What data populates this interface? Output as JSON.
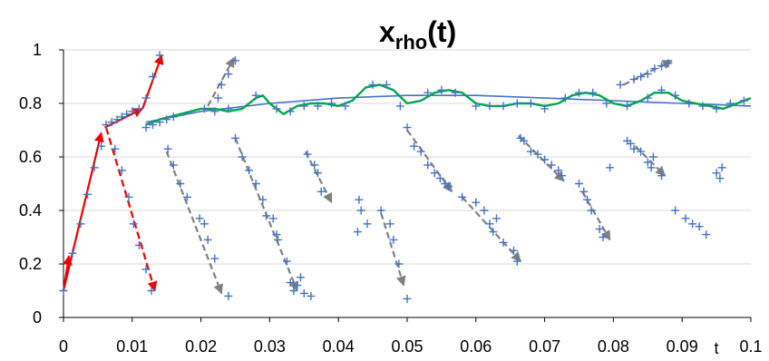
{
  "chart_data": {
    "type": "scatter",
    "title_main": "x",
    "title_sub": "rho",
    "title_tail": "(t)",
    "xlabel": "t",
    "xlim": [
      0,
      0.1
    ],
    "ylim": [
      0,
      1
    ],
    "x_ticks": [
      "0",
      "0.01",
      "0.02",
      "0.03",
      "0.04",
      "0.05",
      "0.06",
      "0.07",
      "0.08",
      "0.09",
      "0.1"
    ],
    "y_ticks": [
      "0",
      "0.2",
      "0.4",
      "0.6",
      "0.8",
      "1"
    ],
    "grid": "horizontal",
    "colors": {
      "points": "#4472c4",
      "smooth_fit": "#4472c4",
      "oscillating_fit": "#00a651",
      "red_arrows": "#ee0000",
      "gray_arrows": "#808080"
    },
    "series": [
      {
        "marker": "plus",
        "points": [
          [
            0,
            0.1
          ],
          [
            0.0013,
            0.24
          ],
          [
            0.0025,
            0.35
          ],
          [
            0.0035,
            0.46
          ],
          [
            0.0045,
            0.56
          ],
          [
            0.0055,
            0.64
          ],
          [
            0.0062,
            0.72
          ],
          [
            0.007,
            0.73
          ],
          [
            0.0078,
            0.74
          ],
          [
            0.0085,
            0.75
          ],
          [
            0.0092,
            0.76
          ],
          [
            0.01,
            0.77
          ],
          [
            0.011,
            0.78
          ],
          [
            0.012,
            0.82
          ],
          [
            0.013,
            0.9
          ],
          [
            0.014,
            0.98
          ],
          [
            0.0075,
            0.63
          ],
          [
            0.0085,
            0.55
          ],
          [
            0.0095,
            0.45
          ],
          [
            0.0102,
            0.35
          ],
          [
            0.011,
            0.27
          ],
          [
            0.012,
            0.18
          ],
          [
            0.0128,
            0.1
          ],
          [
            0.012,
            0.71
          ],
          [
            0.013,
            0.72
          ],
          [
            0.014,
            0.73
          ],
          [
            0.015,
            0.74
          ],
          [
            0.016,
            0.75
          ],
          [
            0.0152,
            0.63
          ],
          [
            0.016,
            0.57
          ],
          [
            0.017,
            0.5
          ],
          [
            0.018,
            0.45
          ],
          [
            0.0198,
            0.37
          ],
          [
            0.0205,
            0.35
          ],
          [
            0.021,
            0.29
          ],
          [
            0.022,
            0.22
          ],
          [
            0.024,
            0.08
          ],
          [
            0.0205,
            0.78
          ],
          [
            0.0225,
            0.82
          ],
          [
            0.023,
            0.87
          ],
          [
            0.024,
            0.91
          ],
          [
            0.025,
            0.96
          ],
          [
            0.025,
            0.67
          ],
          [
            0.026,
            0.6
          ],
          [
            0.027,
            0.55
          ],
          [
            0.028,
            0.5
          ],
          [
            0.029,
            0.44
          ],
          [
            0.0295,
            0.38
          ],
          [
            0.0305,
            0.37
          ],
          [
            0.031,
            0.31
          ],
          [
            0.0312,
            0.29
          ],
          [
            0.0325,
            0.21
          ],
          [
            0.033,
            0.13
          ],
          [
            0.034,
            0.12
          ],
          [
            0.0345,
            0.15
          ],
          [
            0.035,
            0.09
          ],
          [
            0.036,
            0.08
          ],
          [
            0.0335,
            0.1
          ],
          [
            0.0355,
            0.61
          ],
          [
            0.0365,
            0.57
          ],
          [
            0.037,
            0.54
          ],
          [
            0.0375,
            0.47
          ],
          [
            0.043,
            0.44
          ],
          [
            0.0433,
            0.4
          ],
          [
            0.0428,
            0.32
          ],
          [
            0.0442,
            0.35
          ],
          [
            0.0462,
            0.4
          ],
          [
            0.0475,
            0.35
          ],
          [
            0.048,
            0.29
          ],
          [
            0.0488,
            0.2
          ],
          [
            0.05,
            0.07
          ],
          [
            0.05,
            0.71
          ],
          [
            0.051,
            0.64
          ],
          [
            0.052,
            0.62
          ],
          [
            0.053,
            0.57
          ],
          [
            0.054,
            0.54
          ],
          [
            0.0548,
            0.52
          ],
          [
            0.0555,
            0.5
          ],
          [
            0.056,
            0.49
          ],
          [
            0.058,
            0.45
          ],
          [
            0.06,
            0.43
          ],
          [
            0.0612,
            0.4
          ],
          [
            0.062,
            0.35
          ],
          [
            0.063,
            0.37
          ],
          [
            0.0625,
            0.32
          ],
          [
            0.064,
            0.28
          ],
          [
            0.0655,
            0.25
          ],
          [
            0.066,
            0.21
          ],
          [
            0.0665,
            0.67
          ],
          [
            0.067,
            0.66
          ],
          [
            0.068,
            0.62
          ],
          [
            0.069,
            0.61
          ],
          [
            0.07,
            0.59
          ],
          [
            0.071,
            0.57
          ],
          [
            0.072,
            0.55
          ],
          [
            0.0725,
            0.53
          ],
          [
            0.075,
            0.5
          ],
          [
            0.0757,
            0.47
          ],
          [
            0.0762,
            0.44
          ],
          [
            0.0768,
            0.4
          ],
          [
            0.078,
            0.33
          ],
          [
            0.0785,
            0.3
          ],
          [
            0.0795,
            0.56
          ],
          [
            0.082,
            0.66
          ],
          [
            0.0825,
            0.65
          ],
          [
            0.083,
            0.63
          ],
          [
            0.084,
            0.62
          ],
          [
            0.085,
            0.58
          ],
          [
            0.0855,
            0.56
          ],
          [
            0.0858,
            0.6
          ],
          [
            0.087,
            0.53
          ],
          [
            0.081,
            0.87
          ],
          [
            0.083,
            0.89
          ],
          [
            0.084,
            0.9
          ],
          [
            0.085,
            0.91
          ],
          [
            0.086,
            0.93
          ],
          [
            0.087,
            0.94
          ],
          [
            0.088,
            0.95
          ],
          [
            0.089,
            0.4
          ],
          [
            0.0905,
            0.37
          ],
          [
            0.0915,
            0.35
          ],
          [
            0.0925,
            0.34
          ],
          [
            0.0935,
            0.31
          ],
          [
            0.095,
            0.54
          ],
          [
            0.0955,
            0.52
          ],
          [
            0.0958,
            0.56
          ],
          [
            0.022,
            0.77
          ],
          [
            0.024,
            0.78
          ],
          [
            0.028,
            0.83
          ],
          [
            0.031,
            0.78
          ],
          [
            0.033,
            0.77
          ],
          [
            0.035,
            0.79
          ],
          [
            0.037,
            0.79
          ],
          [
            0.039,
            0.8
          ],
          [
            0.041,
            0.79
          ],
          [
            0.045,
            0.87
          ],
          [
            0.047,
            0.87
          ],
          [
            0.049,
            0.79
          ],
          [
            0.053,
            0.84
          ],
          [
            0.055,
            0.85
          ],
          [
            0.057,
            0.84
          ],
          [
            0.06,
            0.79
          ],
          [
            0.062,
            0.79
          ],
          [
            0.064,
            0.79
          ],
          [
            0.066,
            0.8
          ],
          [
            0.068,
            0.8
          ],
          [
            0.07,
            0.78
          ],
          [
            0.073,
            0.82
          ],
          [
            0.075,
            0.84
          ],
          [
            0.077,
            0.84
          ],
          [
            0.079,
            0.8
          ],
          [
            0.082,
            0.79
          ],
          [
            0.085,
            0.82
          ],
          [
            0.087,
            0.85
          ],
          [
            0.089,
            0.83
          ],
          [
            0.091,
            0.8
          ],
          [
            0.093,
            0.79
          ],
          [
            0.095,
            0.78
          ],
          [
            0.097,
            0.8
          ],
          [
            0.099,
            0.81
          ]
        ]
      },
      {
        "style": "smooth line",
        "points": [
          [
            0.012,
            0.73
          ],
          [
            0.02,
            0.77
          ],
          [
            0.03,
            0.8
          ],
          [
            0.04,
            0.82
          ],
          [
            0.05,
            0.83
          ],
          [
            0.06,
            0.83
          ],
          [
            0.07,
            0.82
          ],
          [
            0.08,
            0.81
          ],
          [
            0.09,
            0.8
          ],
          [
            0.1,
            0.79
          ]
        ]
      },
      {
        "style": "oscillating line",
        "points": [
          [
            0.012,
            0.72
          ],
          [
            0.014,
            0.74
          ],
          [
            0.017,
            0.76
          ],
          [
            0.02,
            0.78
          ],
          [
            0.022,
            0.78
          ],
          [
            0.024,
            0.77
          ],
          [
            0.026,
            0.78
          ],
          [
            0.028,
            0.82
          ],
          [
            0.029,
            0.83
          ],
          [
            0.03,
            0.8
          ],
          [
            0.031,
            0.78
          ],
          [
            0.032,
            0.76
          ],
          [
            0.034,
            0.79
          ],
          [
            0.036,
            0.8
          ],
          [
            0.038,
            0.8
          ],
          [
            0.04,
            0.79
          ],
          [
            0.042,
            0.81
          ],
          [
            0.044,
            0.86
          ],
          [
            0.046,
            0.87
          ],
          [
            0.048,
            0.85
          ],
          [
            0.05,
            0.8
          ],
          [
            0.052,
            0.81
          ],
          [
            0.054,
            0.84
          ],
          [
            0.056,
            0.85
          ],
          [
            0.058,
            0.84
          ],
          [
            0.06,
            0.8
          ],
          [
            0.062,
            0.79
          ],
          [
            0.064,
            0.79
          ],
          [
            0.066,
            0.8
          ],
          [
            0.068,
            0.8
          ],
          [
            0.07,
            0.79
          ],
          [
            0.072,
            0.8
          ],
          [
            0.074,
            0.83
          ],
          [
            0.076,
            0.84
          ],
          [
            0.078,
            0.83
          ],
          [
            0.08,
            0.8
          ],
          [
            0.082,
            0.79
          ],
          [
            0.084,
            0.81
          ],
          [
            0.086,
            0.84
          ],
          [
            0.088,
            0.84
          ],
          [
            0.09,
            0.81
          ],
          [
            0.092,
            0.8
          ],
          [
            0.094,
            0.79
          ],
          [
            0.096,
            0.78
          ],
          [
            0.098,
            0.8
          ],
          [
            0.1,
            0.82
          ]
        ]
      }
    ],
    "red_arrows": [
      {
        "style": "solid",
        "from": [
          0,
          0.1
        ],
        "to": [
          0.0008,
          0.23
        ]
      },
      {
        "style": "solid",
        "from": [
          0,
          0.1
        ],
        "to": [
          0.0055,
          0.69
        ]
      },
      {
        "style": "solid",
        "from": [
          0.006,
          0.71
        ],
        "to": [
          0.0115,
          0.78
        ]
      },
      {
        "style": "solid",
        "from": [
          0.0115,
          0.78
        ],
        "to": [
          0.0143,
          0.98
        ]
      },
      {
        "style": "dashed",
        "from": [
          0.0062,
          0.71
        ],
        "to": [
          0.0133,
          0.1
        ]
      }
    ],
    "gray_arrows": [
      {
        "from": [
          0.015,
          0.62
        ],
        "to": [
          0.023,
          0.09
        ]
      },
      {
        "from": [
          0.021,
          0.79
        ],
        "to": [
          0.0248,
          0.97
        ]
      },
      {
        "from": [
          0.025,
          0.67
        ],
        "to": [
          0.034,
          0.1
        ]
      },
      {
        "from": [
          0.0352,
          0.62
        ],
        "to": [
          0.039,
          0.43
        ]
      },
      {
        "from": [
          0.0462,
          0.39
        ],
        "to": [
          0.0495,
          0.12
        ]
      },
      {
        "from": [
          0.05,
          0.7
        ],
        "to": [
          0.0565,
          0.47
        ]
      },
      {
        "from": [
          0.058,
          0.45
        ],
        "to": [
          0.0665,
          0.21
        ]
      },
      {
        "from": [
          0.0662,
          0.68
        ],
        "to": [
          0.0728,
          0.51
        ]
      },
      {
        "from": [
          0.0755,
          0.47
        ],
        "to": [
          0.0795,
          0.29
        ]
      },
      {
        "from": [
          0.0815,
          0.87
        ],
        "to": [
          0.0885,
          0.96
        ]
      },
      {
        "from": [
          0.0832,
          0.64
        ],
        "to": [
          0.0875,
          0.53
        ]
      }
    ]
  }
}
